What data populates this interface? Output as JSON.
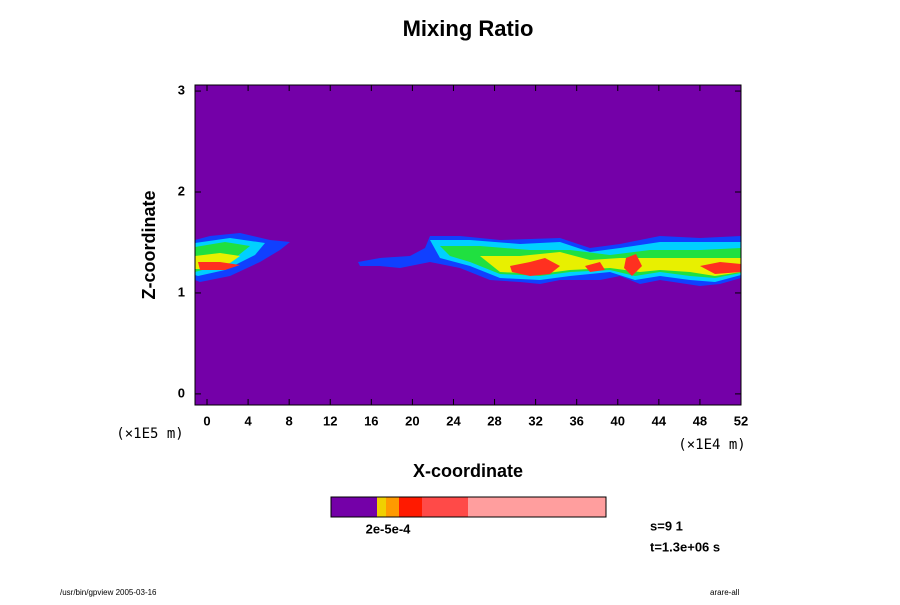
{
  "chart_data": {
    "type": "contour",
    "title": "Mixing Ratio",
    "x_label": "X-coordinate",
    "y_label": "Z-coordinate",
    "x_unit": "(×1E4 m)",
    "y_unit": "(×1E5 m)",
    "xlim": [
      -1.17,
      52
    ],
    "ylim": [
      -0.11,
      3.06
    ],
    "xticks": [
      0,
      4,
      8,
      12,
      16,
      20,
      24,
      28,
      32,
      36,
      40,
      44,
      48,
      52
    ],
    "yticks": [
      0,
      1,
      2,
      3
    ],
    "background_color": "#7400a8",
    "colorbar": {
      "colors": [
        "#7400a8",
        "#f0d000",
        "#ff9a00",
        "#ff1a00",
        "#ff4a48",
        "#ff9e9e"
      ],
      "label": "2e-5e-4"
    },
    "annotations": [
      "s=9 1",
      "t=1.3e+06 s"
    ],
    "footer_left": "/usr/bin/gpview 2005-03-16",
    "footer_right": "arare-all"
  }
}
